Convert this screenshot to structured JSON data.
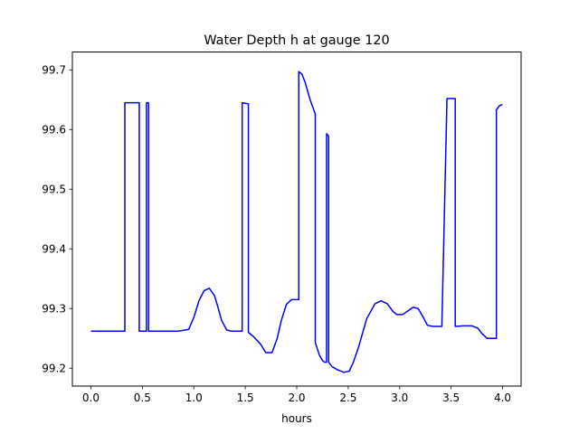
{
  "chart_data": {
    "type": "line",
    "title": "Water Depth h at gauge 120",
    "xlabel": "hours",
    "ylabel": "",
    "xlim": [
      -0.18,
      4.18
    ],
    "ylim": [
      99.17,
      99.73
    ],
    "x_ticks": [
      0.0,
      0.5,
      1.0,
      1.5,
      2.0,
      2.5,
      3.0,
      3.5,
      4.0
    ],
    "x_tick_labels": [
      "0.0",
      "0.5",
      "1.0",
      "1.5",
      "2.0",
      "2.5",
      "3.0",
      "3.5",
      "4.0"
    ],
    "y_ticks": [
      99.2,
      99.3,
      99.4,
      99.5,
      99.6,
      99.7
    ],
    "y_tick_labels": [
      "99.2",
      "99.3",
      "99.4",
      "99.5",
      "99.6",
      "99.7"
    ],
    "grid": false,
    "series": [
      {
        "color": "#0000ff",
        "x": [
          0.0,
          0.33,
          0.33,
          0.47,
          0.47,
          0.54,
          0.54,
          0.56,
          0.56,
          0.85,
          0.95,
          1.0,
          1.05,
          1.1,
          1.15,
          1.2,
          1.23,
          1.27,
          1.32,
          1.37,
          1.41,
          1.47,
          1.47,
          1.53,
          1.53,
          1.58,
          1.65,
          1.7,
          1.76,
          1.81,
          1.85,
          1.9,
          1.95,
          1.99,
          2.02,
          2.02,
          2.05,
          2.08,
          2.13,
          2.18,
          2.18,
          2.22,
          2.25,
          2.27,
          2.29,
          2.29,
          2.31,
          2.31,
          2.34,
          2.4,
          2.46,
          2.51,
          2.55,
          2.6,
          2.68,
          2.76,
          2.82,
          2.88,
          2.93,
          2.97,
          3.03,
          3.08,
          3.13,
          3.18,
          3.23,
          3.27,
          3.32,
          3.37,
          3.41,
          3.46,
          3.5,
          3.5,
          3.54,
          3.54,
          3.62,
          3.7,
          3.76,
          3.8,
          3.85,
          3.9,
          3.94,
          3.94,
          3.97,
          4.0
        ],
        "y": [
          99.262,
          99.262,
          99.645,
          99.645,
          99.262,
          99.262,
          99.645,
          99.645,
          99.262,
          99.262,
          99.265,
          99.285,
          99.313,
          99.33,
          99.334,
          99.322,
          99.305,
          99.28,
          99.264,
          99.262,
          99.262,
          99.262,
          99.645,
          99.643,
          99.26,
          99.253,
          99.24,
          99.226,
          99.226,
          99.25,
          99.28,
          99.307,
          99.315,
          99.315,
          99.315,
          99.697,
          99.693,
          99.68,
          99.65,
          99.626,
          99.243,
          99.222,
          99.213,
          99.21,
          99.21,
          99.593,
          99.589,
          99.21,
          99.203,
          99.197,
          99.193,
          99.195,
          99.21,
          99.235,
          99.283,
          99.308,
          99.313,
          99.308,
          99.296,
          99.29,
          99.29,
          99.296,
          99.302,
          99.3,
          99.285,
          99.272,
          99.27,
          99.27,
          99.27,
          99.652,
          99.652,
          99.652,
          99.652,
          99.27,
          99.271,
          99.271,
          99.267,
          99.258,
          99.25,
          99.25,
          99.25,
          99.633,
          99.64,
          99.642
        ]
      }
    ]
  }
}
